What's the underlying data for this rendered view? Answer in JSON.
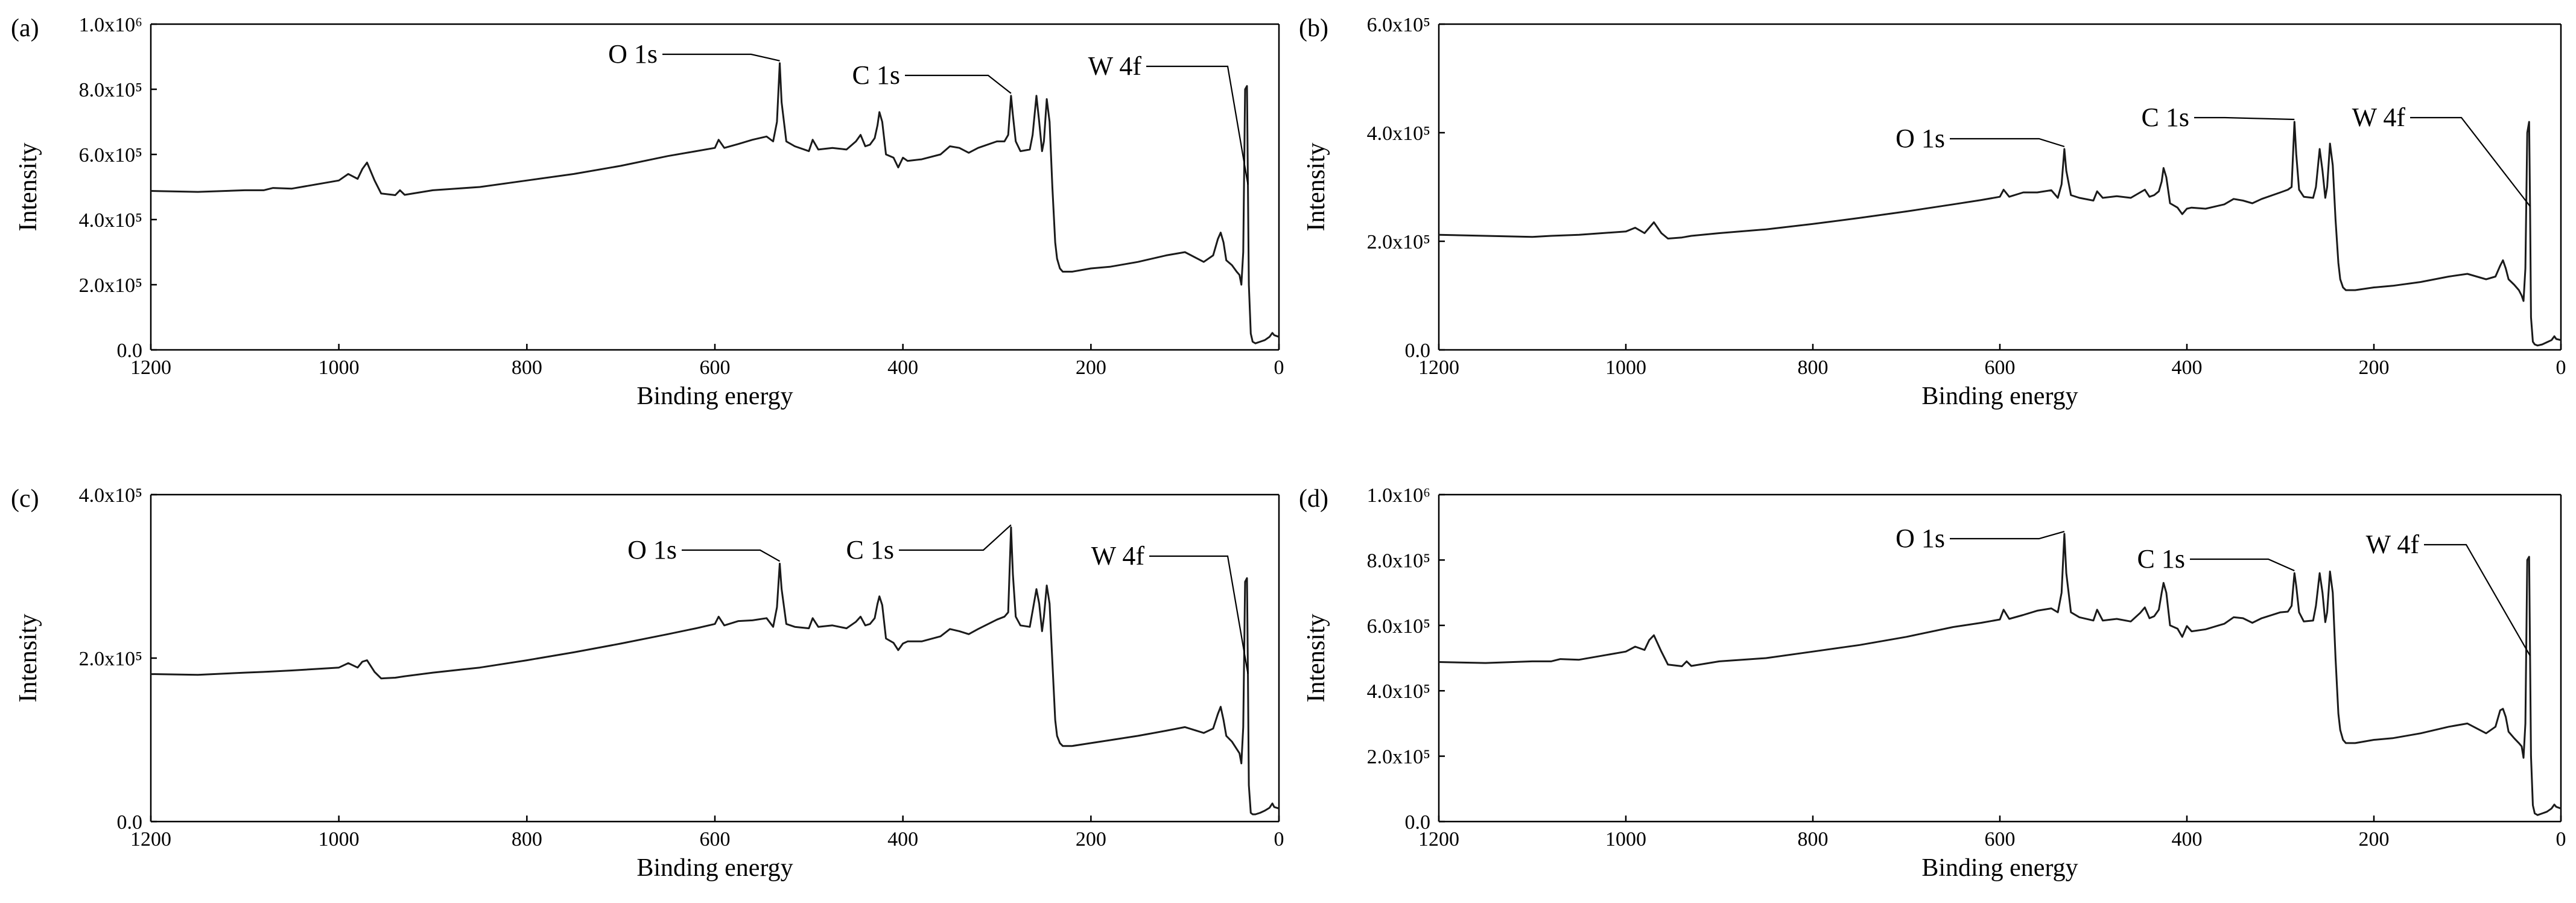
{
  "chart_data": [
    {
      "panel": "(a)",
      "type": "line",
      "xlabel": "Binding energy",
      "ylabel": "Intensity",
      "xlim": [
        1200,
        0
      ],
      "ylim": [
        0,
        1000000
      ],
      "x_reversed": true,
      "xticks": [
        "1200",
        "1000",
        "800",
        "600",
        "400",
        "200",
        "0"
      ],
      "yticks": [
        "0.0",
        "2.0x10⁵",
        "4.0x10⁵",
        "6.0x10⁵",
        "8.0x10⁵",
        "1.0x10⁶"
      ],
      "annotations": [
        "O 1s",
        "C 1s",
        "W 4f"
      ],
      "series": [
        {
          "x": [
            1200,
            1150,
            1100,
            1080,
            1070,
            1050,
            1000,
            990,
            980,
            975,
            970,
            962,
            955,
            940,
            935,
            930,
            900,
            850,
            800,
            750,
            700,
            650,
            620,
            600,
            596,
            590,
            575,
            560,
            545,
            538,
            534,
            531,
            529,
            524,
            515,
            500,
            496,
            490,
            475,
            460,
            450,
            445,
            440,
            435,
            430,
            427,
            425,
            422,
            418,
            410,
            405,
            400,
            395,
            380,
            360,
            350,
            340,
            330,
            320,
            300,
            292,
            288,
            285,
            283,
            280,
            275,
            265,
            262,
            258,
            255,
            252,
            250,
            247,
            244,
            241,
            238,
            236,
            233,
            230,
            220,
            200,
            180,
            150,
            120,
            100,
            80,
            70,
            65,
            62,
            59,
            56,
            50,
            45,
            42,
            40,
            38,
            36,
            34,
            33,
            32,
            30,
            28,
            25,
            20,
            15,
            10,
            7,
            5,
            0
          ],
          "y": [
            488000,
            485000,
            490000,
            490000,
            497000,
            495000,
            520000,
            540000,
            525000,
            555000,
            575000,
            520000,
            480000,
            475000,
            490000,
            476000,
            490000,
            500000,
            520000,
            540000,
            565000,
            595000,
            610000,
            620000,
            645000,
            620000,
            632000,
            645000,
            655000,
            640000,
            700000,
            880000,
            760000,
            640000,
            625000,
            610000,
            645000,
            615000,
            620000,
            615000,
            640000,
            660000,
            625000,
            630000,
            650000,
            690000,
            730000,
            700000,
            600000,
            590000,
            560000,
            590000,
            580000,
            585000,
            600000,
            625000,
            620000,
            605000,
            620000,
            640000,
            640000,
            660000,
            780000,
            720000,
            640000,
            610000,
            615000,
            660000,
            780000,
            700000,
            610000,
            640000,
            770000,
            700000,
            500000,
            330000,
            280000,
            250000,
            240000,
            240000,
            250000,
            255000,
            270000,
            290000,
            300000,
            270000,
            290000,
            340000,
            360000,
            330000,
            275000,
            260000,
            240000,
            230000,
            200000,
            300000,
            800000,
            810000,
            500000,
            200000,
            50000,
            25000,
            20000,
            25000,
            30000,
            40000,
            52000,
            45000,
            40000
          ]
        }
      ]
    },
    {
      "panel": "(b)",
      "type": "line",
      "xlabel": "Binding energy",
      "ylabel": "Intensity",
      "xlim": [
        1200,
        0
      ],
      "ylim": [
        0,
        600000
      ],
      "x_reversed": true,
      "xticks": [
        "1200",
        "1000",
        "800",
        "600",
        "400",
        "200",
        "0"
      ],
      "yticks": [
        "0.0",
        "2.0x10⁵",
        "4.0x10⁵",
        "6.0x10⁵"
      ],
      "annotations": [
        "O 1s",
        "C 1s",
        "W 4f"
      ],
      "series": [
        {
          "x": [
            1200,
            1150,
            1100,
            1080,
            1050,
            1000,
            990,
            980,
            975,
            970,
            962,
            955,
            940,
            930,
            900,
            850,
            800,
            750,
            700,
            650,
            620,
            600,
            596,
            590,
            575,
            560,
            545,
            538,
            534,
            531,
            529,
            524,
            515,
            500,
            496,
            490,
            475,
            460,
            450,
            445,
            440,
            435,
            430,
            427,
            425,
            422,
            418,
            410,
            405,
            400,
            395,
            380,
            360,
            350,
            340,
            330,
            320,
            300,
            292,
            288,
            285,
            283,
            280,
            275,
            265,
            262,
            258,
            255,
            252,
            250,
            247,
            244,
            241,
            238,
            236,
            233,
            230,
            220,
            200,
            180,
            150,
            120,
            100,
            80,
            70,
            65,
            62,
            59,
            56,
            50,
            45,
            42,
            40,
            38,
            36,
            34,
            33,
            32,
            30,
            28,
            25,
            20,
            15,
            10,
            7,
            5,
            0
          ],
          "y": [
            212000,
            210000,
            208000,
            210000,
            212000,
            218000,
            225000,
            215000,
            225000,
            235000,
            215000,
            205000,
            207000,
            210000,
            215000,
            222000,
            232000,
            243000,
            255000,
            268000,
            276000,
            282000,
            295000,
            282000,
            290000,
            290000,
            294000,
            280000,
            305000,
            370000,
            330000,
            285000,
            280000,
            275000,
            292000,
            280000,
            283000,
            280000,
            290000,
            295000,
            282000,
            285000,
            292000,
            310000,
            335000,
            318000,
            270000,
            262000,
            250000,
            260000,
            262000,
            260000,
            268000,
            278000,
            275000,
            270000,
            278000,
            290000,
            295000,
            300000,
            420000,
            360000,
            295000,
            282000,
            280000,
            300000,
            370000,
            330000,
            280000,
            300000,
            380000,
            340000,
            240000,
            160000,
            130000,
            115000,
            110000,
            110000,
            115000,
            118000,
            125000,
            135000,
            140000,
            130000,
            135000,
            155000,
            165000,
            150000,
            130000,
            120000,
            110000,
            100000,
            90000,
            150000,
            400000,
            420000,
            260000,
            60000,
            15000,
            10000,
            8000,
            10000,
            14000,
            18000,
            25000,
            20000,
            18000
          ]
        }
      ]
    },
    {
      "panel": "(c)",
      "type": "line",
      "xlabel": "Binding energy",
      "ylabel": "Intensity",
      "xlim": [
        1200,
        0
      ],
      "ylim": [
        0,
        450000
      ],
      "x_reversed": true,
      "xticks": [
        "1200",
        "1000",
        "800",
        "600",
        "400",
        "200",
        "0"
      ],
      "yticks": [
        "0.0",
        "2.0x10⁵",
        "4.0x10⁵"
      ],
      "annotations": [
        "O 1s",
        "C 1s",
        "W 4f"
      ],
      "series": [
        {
          "x": [
            1200,
            1150,
            1100,
            1080,
            1050,
            1000,
            990,
            980,
            975,
            970,
            962,
            955,
            940,
            930,
            900,
            850,
            800,
            750,
            700,
            650,
            620,
            600,
            596,
            590,
            575,
            560,
            545,
            538,
            534,
            531,
            529,
            524,
            515,
            500,
            496,
            490,
            475,
            460,
            450,
            445,
            440,
            435,
            430,
            427,
            425,
            422,
            418,
            410,
            405,
            400,
            395,
            380,
            360,
            350,
            340,
            330,
            320,
            300,
            292,
            288,
            285,
            283,
            280,
            275,
            265,
            262,
            258,
            255,
            252,
            250,
            247,
            244,
            241,
            238,
            236,
            233,
            230,
            220,
            200,
            180,
            150,
            120,
            100,
            80,
            70,
            65,
            62,
            59,
            56,
            50,
            45,
            42,
            40,
            38,
            36,
            34,
            33,
            32,
            30,
            28,
            25,
            20,
            15,
            10,
            7,
            5,
            0
          ],
          "y": [
            203000,
            202000,
            205000,
            206000,
            208000,
            212000,
            218000,
            212000,
            220000,
            222000,
            206000,
            197000,
            198000,
            200000,
            205000,
            212000,
            222000,
            233000,
            245000,
            258000,
            266000,
            272000,
            282000,
            270000,
            276000,
            277000,
            280000,
            268000,
            295000,
            355000,
            320000,
            272000,
            268000,
            266000,
            280000,
            268000,
            270000,
            266000,
            275000,
            282000,
            270000,
            272000,
            280000,
            300000,
            310000,
            298000,
            252000,
            246000,
            236000,
            245000,
            248000,
            248000,
            255000,
            265000,
            262000,
            258000,
            265000,
            278000,
            282000,
            288000,
            405000,
            340000,
            282000,
            270000,
            268000,
            290000,
            320000,
            300000,
            262000,
            282000,
            325000,
            300000,
            220000,
            140000,
            118000,
            108000,
            104000,
            104000,
            108000,
            112000,
            118000,
            125000,
            130000,
            122000,
            128000,
            148000,
            158000,
            140000,
            118000,
            110000,
            100000,
            94000,
            80000,
            130000,
            330000,
            335000,
            200000,
            50000,
            12000,
            10000,
            10000,
            12000,
            15000,
            19000,
            25000,
            20000,
            18000
          ]
        }
      ]
    },
    {
      "panel": "(d)",
      "type": "line",
      "xlabel": "Binding energy",
      "ylabel": "Intensity",
      "xlim": [
        1200,
        0
      ],
      "ylim": [
        0,
        1000000
      ],
      "x_reversed": true,
      "xticks": [
        "1200",
        "1000",
        "800",
        "600",
        "400",
        "200",
        "0"
      ],
      "yticks": [
        "0.0",
        "2.0x10⁵",
        "4.0x10⁵",
        "6.0x10⁵",
        "8.0x10⁵",
        "1.0x10⁶"
      ],
      "annotations": [
        "O 1s",
        "C 1s",
        "W 4f"
      ],
      "series": [
        {
          "x": [
            1200,
            1150,
            1100,
            1080,
            1070,
            1050,
            1000,
            990,
            980,
            975,
            970,
            962,
            955,
            940,
            935,
            930,
            900,
            850,
            800,
            750,
            700,
            650,
            620,
            600,
            596,
            590,
            575,
            560,
            545,
            538,
            534,
            531,
            529,
            524,
            515,
            500,
            496,
            490,
            475,
            460,
            450,
            445,
            440,
            435,
            430,
            427,
            425,
            422,
            418,
            410,
            405,
            400,
            395,
            380,
            360,
            350,
            340,
            330,
            320,
            300,
            292,
            288,
            285,
            283,
            280,
            275,
            265,
            262,
            258,
            255,
            252,
            250,
            247,
            244,
            241,
            238,
            236,
            233,
            230,
            220,
            200,
            180,
            150,
            120,
            100,
            80,
            70,
            65,
            62,
            59,
            56,
            50,
            45,
            42,
            40,
            38,
            36,
            34,
            33,
            32,
            30,
            28,
            25,
            20,
            15,
            10,
            7,
            5,
            0
          ],
          "y": [
            488000,
            485000,
            490000,
            490000,
            497000,
            495000,
            520000,
            535000,
            525000,
            555000,
            570000,
            520000,
            480000,
            475000,
            490000,
            476000,
            490000,
            500000,
            520000,
            540000,
            565000,
            595000,
            608000,
            618000,
            648000,
            620000,
            632000,
            645000,
            652000,
            640000,
            700000,
            880000,
            760000,
            640000,
            625000,
            615000,
            648000,
            615000,
            620000,
            612000,
            638000,
            655000,
            622000,
            628000,
            648000,
            700000,
            730000,
            700000,
            600000,
            590000,
            565000,
            598000,
            582000,
            588000,
            605000,
            625000,
            622000,
            608000,
            622000,
            640000,
            642000,
            660000,
            760000,
            720000,
            640000,
            612000,
            615000,
            660000,
            760000,
            700000,
            610000,
            640000,
            765000,
            700000,
            500000,
            330000,
            280000,
            250000,
            240000,
            240000,
            250000,
            255000,
            270000,
            290000,
            300000,
            270000,
            290000,
            340000,
            345000,
            320000,
            275000,
            255000,
            240000,
            230000,
            195000,
            300000,
            800000,
            810000,
            500000,
            200000,
            50000,
            25000,
            20000,
            25000,
            30000,
            40000,
            52000,
            45000,
            40000
          ]
        }
      ]
    }
  ]
}
